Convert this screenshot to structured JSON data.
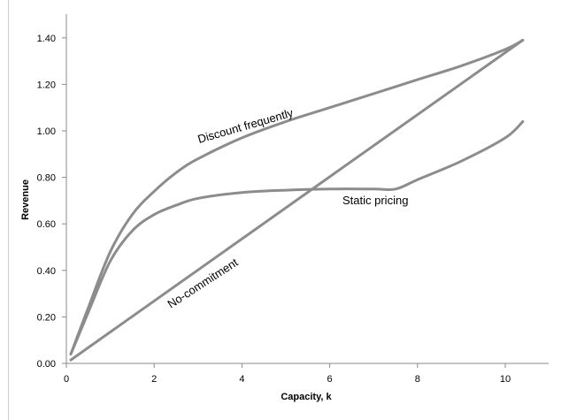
{
  "chart_data": {
    "type": "line",
    "title": "",
    "xlabel": "Capacity, k",
    "ylabel": "Revenue",
    "xlim": [
      0,
      11
    ],
    "ylim": [
      0,
      1.5
    ],
    "x_ticks": [
      "0",
      "2",
      "4",
      "6",
      "8",
      "10"
    ],
    "y_ticks": [
      "0.00",
      "0.20",
      "0.40",
      "0.60",
      "0.80",
      "1.00",
      "1.20",
      "1.40"
    ],
    "grid": false,
    "legend": "none",
    "line_color": "#8c8c8c",
    "series": [
      {
        "name": "Discount frequently",
        "x": [
          0.1,
          0.5,
          1.0,
          1.5,
          2.0,
          2.5,
          3.0,
          4.0,
          5.0,
          6.0,
          7.0,
          8.0,
          9.0,
          10.0,
          10.4
        ],
        "y": [
          0.04,
          0.24,
          0.48,
          0.64,
          0.74,
          0.82,
          0.88,
          0.97,
          1.04,
          1.1,
          1.16,
          1.22,
          1.28,
          1.35,
          1.39
        ]
      },
      {
        "name": "Static pricing",
        "x": [
          0.1,
          0.5,
          1.0,
          1.5,
          2.0,
          2.5,
          3.0,
          4.0,
          5.0,
          6.0,
          7.0,
          7.5,
          8.0,
          9.0,
          10.0,
          10.4
        ],
        "y": [
          0.04,
          0.22,
          0.44,
          0.57,
          0.64,
          0.68,
          0.71,
          0.735,
          0.745,
          0.75,
          0.75,
          0.75,
          0.79,
          0.87,
          0.97,
          1.04
        ]
      },
      {
        "name": "No-commitment",
        "x": [
          0.1,
          10.4
        ],
        "y": [
          0.015,
          1.39
        ]
      }
    ]
  }
}
